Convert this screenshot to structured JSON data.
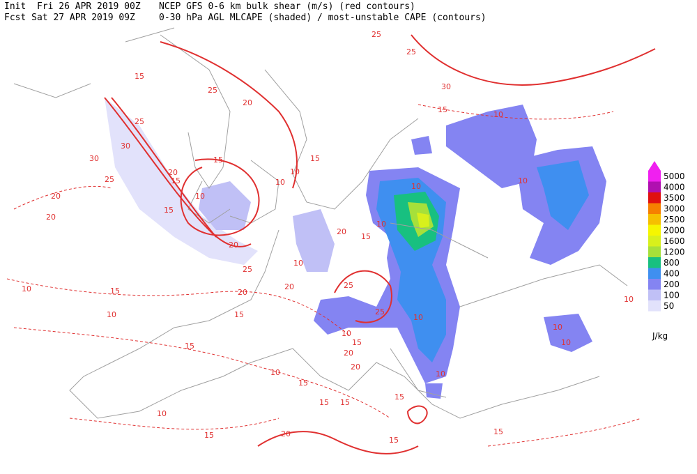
{
  "header": {
    "init": "Init  Fri 26 APR 2019 00Z",
    "model": "NCEP GFS 0-6 km bulk shear (m/s) (red contours)",
    "fcst": "Fcst Sat 27 APR 2019 09Z",
    "fields": "0-30 hPa AGL MLCAPE (shaded) / most-unstable CAPE (contours)"
  },
  "colorbar": {
    "unit": "J/kg",
    "levels": [
      {
        "value": 50,
        "color": "#e2e2fb"
      },
      {
        "value": 100,
        "color": "#c0c0f6"
      },
      {
        "value": 200,
        "color": "#8484f2"
      },
      {
        "value": 400,
        "color": "#3f8ff0"
      },
      {
        "value": 800,
        "color": "#18c080"
      },
      {
        "value": 1200,
        "color": "#a6e03a"
      },
      {
        "value": 1600,
        "color": "#d8f01c"
      },
      {
        "value": 2000,
        "color": "#f6f600"
      },
      {
        "value": 2500,
        "color": "#f6c000"
      },
      {
        "value": 3000,
        "color": "#f68000"
      },
      {
        "value": 3500,
        "color": "#e01010"
      },
      {
        "value": 4000,
        "color": "#b010b0"
      },
      {
        "value": 5000,
        "color": "#f020f0"
      }
    ]
  },
  "contour_labels": [
    "25",
    "25",
    "30",
    "15",
    "10",
    "15",
    "25",
    "20",
    "25",
    "30",
    "30",
    "25",
    "20",
    "20",
    "20",
    "15",
    "15",
    "10",
    "15",
    "10",
    "10",
    "15",
    "20",
    "10",
    "20",
    "25",
    "20",
    "20",
    "10",
    "10",
    "15",
    "10",
    "25",
    "25",
    "10",
    "15",
    "20",
    "20",
    "15",
    "15",
    "15",
    "15",
    "10",
    "10",
    "15",
    "15",
    "15",
    "10",
    "10",
    "20",
    "15",
    "15",
    "15",
    "10",
    "10",
    "10",
    "10",
    "10"
  ]
}
